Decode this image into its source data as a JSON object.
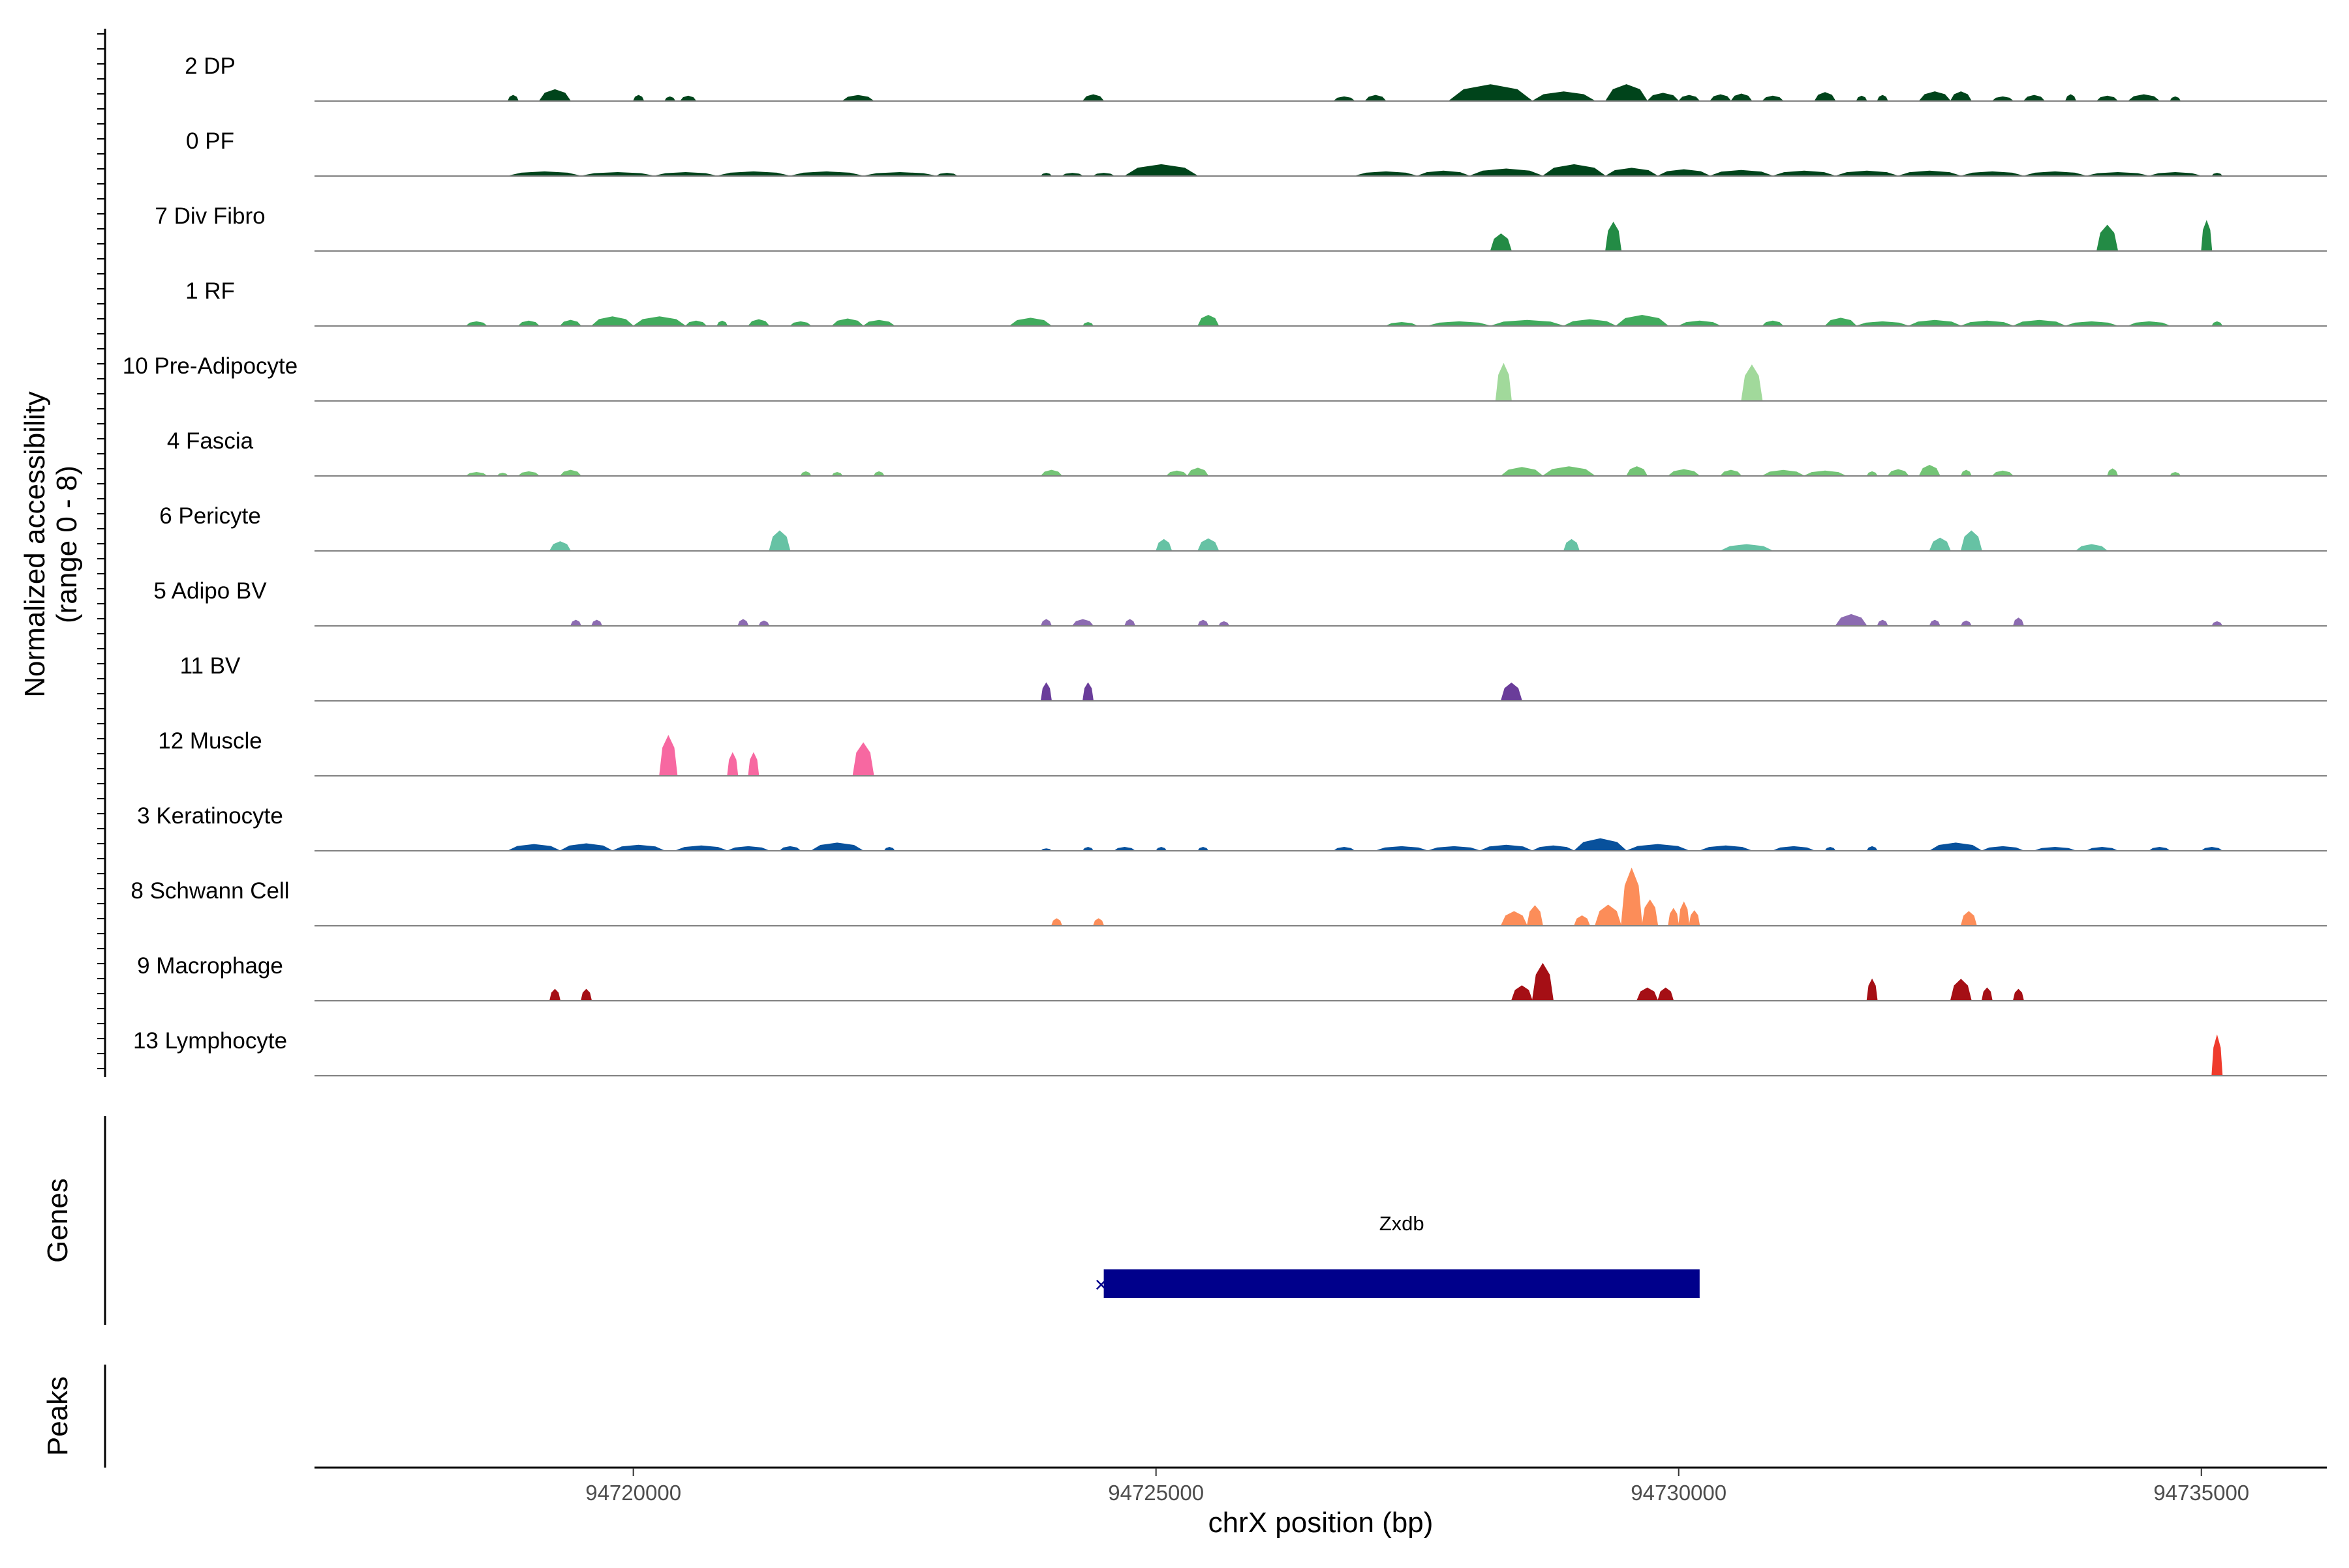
{
  "chart_data": {
    "type": "area",
    "title": "",
    "ylabel": "Normalized accessibility\n(range 0 - 8)",
    "ylabel_lines": [
      "Normalized accessibility",
      "(range 0 - 8)"
    ],
    "xlabel": "chrX position (bp)",
    "y_range": [
      0,
      8
    ],
    "x_range": [
      94716950,
      94736200
    ],
    "x_ticks": [
      94720000,
      94725000,
      94730000,
      94735000
    ],
    "x_tick_labels": [
      "94720000",
      "94725000",
      "94730000",
      "94735000"
    ],
    "tracks": [
      {
        "name": "2 DP",
        "color": "#00441b",
        "peaks": [
          [
            94718800,
            94718900,
            0.8
          ],
          [
            94719100,
            94719400,
            1.6
          ],
          [
            94720000,
            94720100,
            0.8
          ],
          [
            94720300,
            94720400,
            0.6
          ],
          [
            94720450,
            94720600,
            0.7
          ],
          [
            94722000,
            94722300,
            0.8
          ],
          [
            94724300,
            94724500,
            0.9
          ],
          [
            94726700,
            94726900,
            0.6
          ],
          [
            94727000,
            94727200,
            0.8
          ],
          [
            94727800,
            94728600,
            2.3
          ],
          [
            94728600,
            94729200,
            1.3
          ],
          [
            94729300,
            94729700,
            2.3
          ],
          [
            94729700,
            94730000,
            1.1
          ],
          [
            94730000,
            94730200,
            0.8
          ],
          [
            94730300,
            94730500,
            0.9
          ],
          [
            94730500,
            94730700,
            1.0
          ],
          [
            94730800,
            94731000,
            0.7
          ],
          [
            94731300,
            94731500,
            1.2
          ],
          [
            94731700,
            94731800,
            0.7
          ],
          [
            94731900,
            94732000,
            0.8
          ],
          [
            94732300,
            94732600,
            1.3
          ],
          [
            94732600,
            94732800,
            1.3
          ],
          [
            94733000,
            94733200,
            0.6
          ],
          [
            94733300,
            94733500,
            0.8
          ],
          [
            94733700,
            94733800,
            0.9
          ],
          [
            94734000,
            94734200,
            0.7
          ],
          [
            94734300,
            94734600,
            0.9
          ],
          [
            94734700,
            94734800,
            0.6
          ]
        ]
      },
      {
        "name": "0 PF",
        "color": "#00441b",
        "peaks": [
          [
            94718800,
            94719500,
            0.6
          ],
          [
            94719500,
            94720200,
            0.5
          ],
          [
            94720200,
            94720800,
            0.5
          ],
          [
            94720800,
            94721500,
            0.6
          ],
          [
            94721500,
            94722200,
            0.6
          ],
          [
            94722200,
            94722900,
            0.5
          ],
          [
            94722900,
            94723100,
            0.4
          ],
          [
            94723900,
            94724000,
            0.4
          ],
          [
            94724100,
            94724300,
            0.4
          ],
          [
            94724400,
            94724600,
            0.4
          ],
          [
            94724700,
            94725400,
            1.6
          ],
          [
            94726900,
            94727500,
            0.6
          ],
          [
            94727500,
            94728000,
            0.7
          ],
          [
            94728000,
            94728700,
            1.0
          ],
          [
            94728700,
            94729300,
            1.6
          ],
          [
            94729300,
            94729800,
            1.1
          ],
          [
            94729800,
            94730300,
            0.9
          ],
          [
            94730300,
            94730900,
            0.8
          ],
          [
            94730900,
            94731500,
            0.7
          ],
          [
            94731500,
            94732100,
            0.7
          ],
          [
            94732100,
            94732700,
            0.7
          ],
          [
            94732700,
            94733300,
            0.6
          ],
          [
            94733300,
            94733900,
            0.6
          ],
          [
            94733900,
            94734500,
            0.5
          ],
          [
            94734500,
            94735000,
            0.5
          ],
          [
            94735100,
            94735200,
            0.4
          ]
        ]
      },
      {
        "name": "7 Div Fibro",
        "color": "#238b45",
        "peaks": [
          [
            94728200,
            94728400,
            2.4
          ],
          [
            94729300,
            94729450,
            4.0
          ],
          [
            94734000,
            94734200,
            3.6
          ],
          [
            94735000,
            94735100,
            4.2
          ]
        ]
      },
      {
        "name": "1 RF",
        "color": "#41ab5d",
        "peaks": [
          [
            94718400,
            94718600,
            0.6
          ],
          [
            94718900,
            94719100,
            0.7
          ],
          [
            94719300,
            94719500,
            0.8
          ],
          [
            94719600,
            94720000,
            1.3
          ],
          [
            94720000,
            94720500,
            1.3
          ],
          [
            94720500,
            94720700,
            0.7
          ],
          [
            94720800,
            94720900,
            0.7
          ],
          [
            94721100,
            94721300,
            0.9
          ],
          [
            94721500,
            94721700,
            0.6
          ],
          [
            94721900,
            94722200,
            1.0
          ],
          [
            94722200,
            94722500,
            0.8
          ],
          [
            94723600,
            94724000,
            1.1
          ],
          [
            94724300,
            94724400,
            0.5
          ],
          [
            94725400,
            94725600,
            1.5
          ],
          [
            94727200,
            94727500,
            0.5
          ],
          [
            94727600,
            94728200,
            0.6
          ],
          [
            94728200,
            94728900,
            0.8
          ],
          [
            94728900,
            94729400,
            0.9
          ],
          [
            94729400,
            94729900,
            1.5
          ],
          [
            94730000,
            94730400,
            0.7
          ],
          [
            94730800,
            94731000,
            0.7
          ],
          [
            94731400,
            94731700,
            1.1
          ],
          [
            94731700,
            94732200,
            0.6
          ],
          [
            94732200,
            94732700,
            0.8
          ],
          [
            94732700,
            94733200,
            0.7
          ],
          [
            94733200,
            94733700,
            0.8
          ],
          [
            94733700,
            94734200,
            0.6
          ],
          [
            94734300,
            94734700,
            0.6
          ],
          [
            94735100,
            94735200,
            0.6
          ]
        ]
      },
      {
        "name": "10 Pre-Adipocyte",
        "color": "#a1d99b",
        "peaks": [
          [
            94728250,
            94728400,
            5.2
          ],
          [
            94730600,
            94730800,
            5.0
          ]
        ]
      },
      {
        "name": "4 Fascia",
        "color": "#74c476",
        "peaks": [
          [
            94718400,
            94718600,
            0.5
          ],
          [
            94718700,
            94718800,
            0.4
          ],
          [
            94718900,
            94719100,
            0.6
          ],
          [
            94719300,
            94719500,
            0.8
          ],
          [
            94721600,
            94721700,
            0.6
          ],
          [
            94721900,
            94722000,
            0.5
          ],
          [
            94722300,
            94722400,
            0.6
          ],
          [
            94723900,
            94724100,
            0.8
          ],
          [
            94725100,
            94725300,
            0.7
          ],
          [
            94725300,
            94725500,
            1.1
          ],
          [
            94728300,
            94728700,
            1.2
          ],
          [
            94728700,
            94729200,
            1.3
          ],
          [
            94729500,
            94729700,
            1.3
          ],
          [
            94729900,
            94730200,
            0.9
          ],
          [
            94730400,
            94730600,
            0.8
          ],
          [
            94730800,
            94731200,
            0.8
          ],
          [
            94731200,
            94731600,
            0.7
          ],
          [
            94731800,
            94731900,
            0.6
          ],
          [
            94732000,
            94732200,
            0.9
          ],
          [
            94732300,
            94732500,
            1.5
          ],
          [
            94732700,
            94732800,
            0.8
          ],
          [
            94733000,
            94733200,
            0.7
          ],
          [
            94734100,
            94734200,
            1.0
          ],
          [
            94734700,
            94734800,
            0.5
          ]
        ]
      },
      {
        "name": "6 Pericyte",
        "color": "#66c2a4",
        "peaks": [
          [
            94719200,
            94719400,
            1.3
          ],
          [
            94721300,
            94721500,
            2.8
          ],
          [
            94725000,
            94725150,
            1.6
          ],
          [
            94725400,
            94725600,
            1.7
          ],
          [
            94728900,
            94729050,
            1.6
          ],
          [
            94730400,
            94730900,
            0.9
          ],
          [
            94732400,
            94732600,
            1.8
          ],
          [
            94732700,
            94732900,
            2.8
          ],
          [
            94733800,
            94734100,
            0.9
          ]
        ]
      },
      {
        "name": "5 Adipo BV",
        "color": "#8c6bb1",
        "peaks": [
          [
            94719400,
            94719500,
            0.8
          ],
          [
            94719600,
            94719700,
            0.8
          ],
          [
            94721000,
            94721100,
            0.9
          ],
          [
            94721200,
            94721300,
            0.7
          ],
          [
            94723900,
            94724000,
            0.9
          ],
          [
            94724200,
            94724400,
            0.9
          ],
          [
            94724700,
            94724800,
            0.9
          ],
          [
            94725400,
            94725500,
            0.8
          ],
          [
            94725600,
            94725700,
            0.6
          ],
          [
            94731500,
            94731800,
            1.6
          ],
          [
            94731900,
            94732000,
            0.8
          ],
          [
            94732400,
            94732500,
            0.8
          ],
          [
            94732700,
            94732800,
            0.7
          ],
          [
            94733200,
            94733300,
            1.1
          ],
          [
            94735100,
            94735200,
            0.6
          ]
        ]
      },
      {
        "name": "11 BV",
        "color": "#6a3d9a",
        "peaks": [
          [
            94723900,
            94724000,
            2.5
          ],
          [
            94724300,
            94724400,
            2.5
          ],
          [
            94728300,
            94728500,
            2.5
          ]
        ]
      },
      {
        "name": "12 Muscle",
        "color": "#f768a1",
        "peaks": [
          [
            94720250,
            94720420,
            5.6
          ],
          [
            94720900,
            94721000,
            3.2
          ],
          [
            94721100,
            94721200,
            3.2
          ],
          [
            94722100,
            94722300,
            4.6
          ]
        ]
      },
      {
        "name": "3 Keratinocyte",
        "color": "#08519c",
        "peaks": [
          [
            94718800,
            94719300,
            0.9
          ],
          [
            94719300,
            94719800,
            1.0
          ],
          [
            94719800,
            94720300,
            0.8
          ],
          [
            94720400,
            94720900,
            0.7
          ],
          [
            94720900,
            94721300,
            0.6
          ],
          [
            94721400,
            94721600,
            0.6
          ],
          [
            94721700,
            94722200,
            1.1
          ],
          [
            94722400,
            94722500,
            0.5
          ],
          [
            94723900,
            94724000,
            0.3
          ],
          [
            94724300,
            94724400,
            0.5
          ],
          [
            94724600,
            94724800,
            0.5
          ],
          [
            94725000,
            94725100,
            0.5
          ],
          [
            94725400,
            94725500,
            0.5
          ],
          [
            94726700,
            94726900,
            0.5
          ],
          [
            94727100,
            94727600,
            0.6
          ],
          [
            94727600,
            94728100,
            0.6
          ],
          [
            94728100,
            94728600,
            0.8
          ],
          [
            94728600,
            94729000,
            0.7
          ],
          [
            94729000,
            94729500,
            1.7
          ],
          [
            94729500,
            94730100,
            0.9
          ],
          [
            94730200,
            94730700,
            0.7
          ],
          [
            94730900,
            94731300,
            0.6
          ],
          [
            94731400,
            94731500,
            0.5
          ],
          [
            94731800,
            94731900,
            0.6
          ],
          [
            94732400,
            94732900,
            1.1
          ],
          [
            94732900,
            94733300,
            0.6
          ],
          [
            94733400,
            94733800,
            0.5
          ],
          [
            94733900,
            94734200,
            0.5
          ],
          [
            94734500,
            94734700,
            0.5
          ],
          [
            94735000,
            94735200,
            0.5
          ]
        ]
      },
      {
        "name": "8 Schwann Cell",
        "color": "#fc8d59",
        "peaks": [
          [
            94724000,
            94724100,
            1.0
          ],
          [
            94724400,
            94724500,
            1.0
          ],
          [
            94728300,
            94728550,
            2.0
          ],
          [
            94728550,
            94728700,
            2.8
          ],
          [
            94729000,
            94729150,
            1.4
          ],
          [
            94729200,
            94729450,
            2.9
          ],
          [
            94729450,
            94729650,
            8.0
          ],
          [
            94729650,
            94729800,
            3.6
          ],
          [
            94729900,
            94730000,
            2.4
          ],
          [
            94730000,
            94730100,
            3.3
          ],
          [
            94730100,
            94730200,
            2.1
          ],
          [
            94732700,
            94732850,
            2.0
          ]
        ]
      },
      {
        "name": "9 Macrophage",
        "color": "#a50f15",
        "peaks": [
          [
            94719200,
            94719300,
            1.6
          ],
          [
            94719500,
            94719600,
            1.6
          ],
          [
            94728400,
            94728600,
            2.1
          ],
          [
            94728600,
            94728800,
            5.2
          ],
          [
            94729600,
            94729800,
            1.8
          ],
          [
            94729800,
            94729950,
            1.8
          ],
          [
            94731800,
            94731900,
            3.0
          ],
          [
            94732600,
            94732800,
            3.0
          ],
          [
            94732900,
            94733000,
            1.8
          ],
          [
            94733200,
            94733300,
            1.6
          ]
        ]
      },
      {
        "name": "13 Lymphocyte",
        "color": "#ef3b2c",
        "peaks": [
          [
            94735100,
            94735200,
            5.6
          ]
        ]
      }
    ],
    "gene": {
      "name": "Zxdb",
      "start": 94724500,
      "end": 94730200,
      "strand": "-"
    },
    "panels": {
      "genes": "Genes",
      "peaks": "Peaks"
    }
  }
}
